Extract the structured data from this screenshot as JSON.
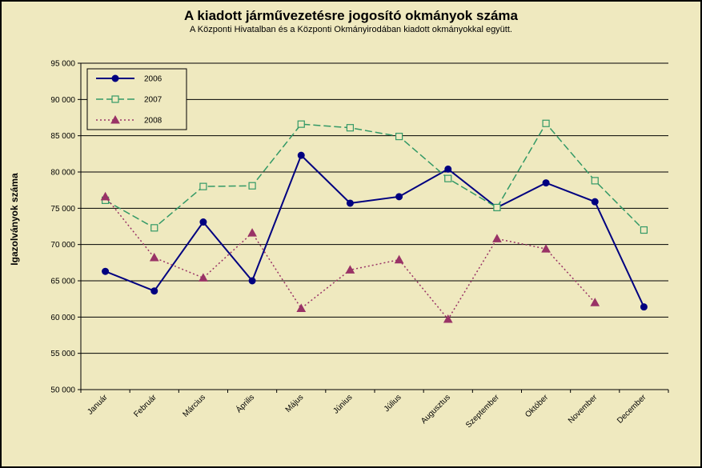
{
  "chart_data": {
    "type": "line",
    "title": "A  kiadott járművezetésre  jogosító okmányok száma",
    "subtitle": "A  Központi Hivatalban és a Központi Okmányirodában kiadott okmányokkal együtt.",
    "ylabel": "Igazolványok száma",
    "xlabel": "",
    "ylim": [
      50000,
      95000
    ],
    "yticks": [
      "50 000",
      "55 000",
      "60 000",
      "65 000",
      "70 000",
      "75 000",
      "80 000",
      "85 000",
      "90 000",
      "95 000"
    ],
    "categories": [
      "Január",
      "Február",
      "Március",
      "Április",
      "Május",
      "Június",
      "Július",
      "Augusztus",
      "Szeptember",
      "Október",
      "November",
      "December"
    ],
    "grid": "horizontal",
    "legend_position": "top-left",
    "series": [
      {
        "name": "2006",
        "color": "#000080",
        "marker": "filled-circle",
        "line_style": "solid",
        "values": [
          66300,
          63600,
          73100,
          65000,
          82300,
          75700,
          76600,
          80400,
          75100,
          78500,
          75900,
          61400
        ]
      },
      {
        "name": "2007",
        "color": "#339966",
        "marker": "open-square",
        "line_style": "long-dash",
        "values": [
          76100,
          72300,
          78000,
          78100,
          86600,
          86100,
          84900,
          79100,
          75100,
          86700,
          78800,
          72000
        ]
      },
      {
        "name": "2008",
        "color": "#993366",
        "marker": "filled-triangle",
        "line_style": "dotted",
        "values": [
          76600,
          68200,
          65400,
          71600,
          61200,
          66500,
          67900,
          59700,
          70800,
          69400,
          62000,
          null
        ]
      }
    ]
  }
}
